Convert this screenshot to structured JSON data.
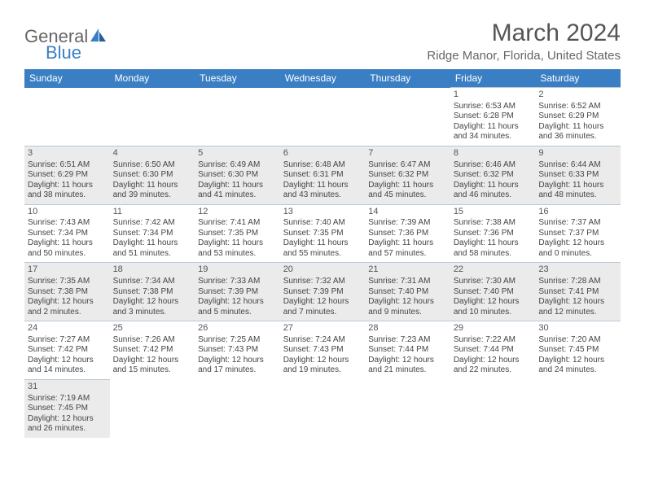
{
  "logo": {
    "text1": "General",
    "text2": "Blue"
  },
  "title": "March 2024",
  "location": "Ridge Manor, Florida, United States",
  "headers": [
    "Sunday",
    "Monday",
    "Tuesday",
    "Wednesday",
    "Thursday",
    "Friday",
    "Saturday"
  ],
  "colors": {
    "header_bg": "#3a7fc4",
    "header_fg": "#ffffff",
    "shaded_bg": "#ebebeb",
    "cell_border": "#b8c8d8",
    "text": "#444444",
    "title": "#555555"
  },
  "weeks": [
    [
      {
        "empty": true
      },
      {
        "empty": true
      },
      {
        "empty": true
      },
      {
        "empty": true
      },
      {
        "empty": true
      },
      {
        "num": "1",
        "sunrise": "6:53 AM",
        "sunset": "6:28 PM",
        "daylight_h": "11",
        "daylight_m": "34"
      },
      {
        "num": "2",
        "sunrise": "6:52 AM",
        "sunset": "6:29 PM",
        "daylight_h": "11",
        "daylight_m": "36"
      }
    ],
    [
      {
        "num": "3",
        "sunrise": "6:51 AM",
        "sunset": "6:29 PM",
        "daylight_h": "11",
        "daylight_m": "38",
        "shaded": true
      },
      {
        "num": "4",
        "sunrise": "6:50 AM",
        "sunset": "6:30 PM",
        "daylight_h": "11",
        "daylight_m": "39",
        "shaded": true
      },
      {
        "num": "5",
        "sunrise": "6:49 AM",
        "sunset": "6:30 PM",
        "daylight_h": "11",
        "daylight_m": "41",
        "shaded": true
      },
      {
        "num": "6",
        "sunrise": "6:48 AM",
        "sunset": "6:31 PM",
        "daylight_h": "11",
        "daylight_m": "43",
        "shaded": true
      },
      {
        "num": "7",
        "sunrise": "6:47 AM",
        "sunset": "6:32 PM",
        "daylight_h": "11",
        "daylight_m": "45",
        "shaded": true
      },
      {
        "num": "8",
        "sunrise": "6:46 AM",
        "sunset": "6:32 PM",
        "daylight_h": "11",
        "daylight_m": "46",
        "shaded": true
      },
      {
        "num": "9",
        "sunrise": "6:44 AM",
        "sunset": "6:33 PM",
        "daylight_h": "11",
        "daylight_m": "48",
        "shaded": true
      }
    ],
    [
      {
        "num": "10",
        "sunrise": "7:43 AM",
        "sunset": "7:34 PM",
        "daylight_h": "11",
        "daylight_m": "50"
      },
      {
        "num": "11",
        "sunrise": "7:42 AM",
        "sunset": "7:34 PM",
        "daylight_h": "11",
        "daylight_m": "51"
      },
      {
        "num": "12",
        "sunrise": "7:41 AM",
        "sunset": "7:35 PM",
        "daylight_h": "11",
        "daylight_m": "53"
      },
      {
        "num": "13",
        "sunrise": "7:40 AM",
        "sunset": "7:35 PM",
        "daylight_h": "11",
        "daylight_m": "55"
      },
      {
        "num": "14",
        "sunrise": "7:39 AM",
        "sunset": "7:36 PM",
        "daylight_h": "11",
        "daylight_m": "57"
      },
      {
        "num": "15",
        "sunrise": "7:38 AM",
        "sunset": "7:36 PM",
        "daylight_h": "11",
        "daylight_m": "58"
      },
      {
        "num": "16",
        "sunrise": "7:37 AM",
        "sunset": "7:37 PM",
        "daylight_h": "12",
        "daylight_m": "0"
      }
    ],
    [
      {
        "num": "17",
        "sunrise": "7:35 AM",
        "sunset": "7:38 PM",
        "daylight_h": "12",
        "daylight_m": "2",
        "shaded": true
      },
      {
        "num": "18",
        "sunrise": "7:34 AM",
        "sunset": "7:38 PM",
        "daylight_h": "12",
        "daylight_m": "3",
        "shaded": true
      },
      {
        "num": "19",
        "sunrise": "7:33 AM",
        "sunset": "7:39 PM",
        "daylight_h": "12",
        "daylight_m": "5",
        "shaded": true
      },
      {
        "num": "20",
        "sunrise": "7:32 AM",
        "sunset": "7:39 PM",
        "daylight_h": "12",
        "daylight_m": "7",
        "shaded": true
      },
      {
        "num": "21",
        "sunrise": "7:31 AM",
        "sunset": "7:40 PM",
        "daylight_h": "12",
        "daylight_m": "9",
        "shaded": true
      },
      {
        "num": "22",
        "sunrise": "7:30 AM",
        "sunset": "7:40 PM",
        "daylight_h": "12",
        "daylight_m": "10",
        "shaded": true
      },
      {
        "num": "23",
        "sunrise": "7:28 AM",
        "sunset": "7:41 PM",
        "daylight_h": "12",
        "daylight_m": "12",
        "shaded": true
      }
    ],
    [
      {
        "num": "24",
        "sunrise": "7:27 AM",
        "sunset": "7:42 PM",
        "daylight_h": "12",
        "daylight_m": "14"
      },
      {
        "num": "25",
        "sunrise": "7:26 AM",
        "sunset": "7:42 PM",
        "daylight_h": "12",
        "daylight_m": "15"
      },
      {
        "num": "26",
        "sunrise": "7:25 AM",
        "sunset": "7:43 PM",
        "daylight_h": "12",
        "daylight_m": "17"
      },
      {
        "num": "27",
        "sunrise": "7:24 AM",
        "sunset": "7:43 PM",
        "daylight_h": "12",
        "daylight_m": "19"
      },
      {
        "num": "28",
        "sunrise": "7:23 AM",
        "sunset": "7:44 PM",
        "daylight_h": "12",
        "daylight_m": "21"
      },
      {
        "num": "29",
        "sunrise": "7:22 AM",
        "sunset": "7:44 PM",
        "daylight_h": "12",
        "daylight_m": "22"
      },
      {
        "num": "30",
        "sunrise": "7:20 AM",
        "sunset": "7:45 PM",
        "daylight_h": "12",
        "daylight_m": "24"
      }
    ],
    [
      {
        "num": "31",
        "sunrise": "7:19 AM",
        "sunset": "7:45 PM",
        "daylight_h": "12",
        "daylight_m": "26",
        "shaded": true
      },
      {
        "empty": true
      },
      {
        "empty": true
      },
      {
        "empty": true
      },
      {
        "empty": true
      },
      {
        "empty": true
      },
      {
        "empty": true
      }
    ]
  ],
  "labels": {
    "sunrise_prefix": "Sunrise: ",
    "sunset_prefix": "Sunset: ",
    "daylight_prefix": "Daylight: ",
    "hours_word": " hours",
    "and_word": "and ",
    "minutes_word": " minutes."
  }
}
